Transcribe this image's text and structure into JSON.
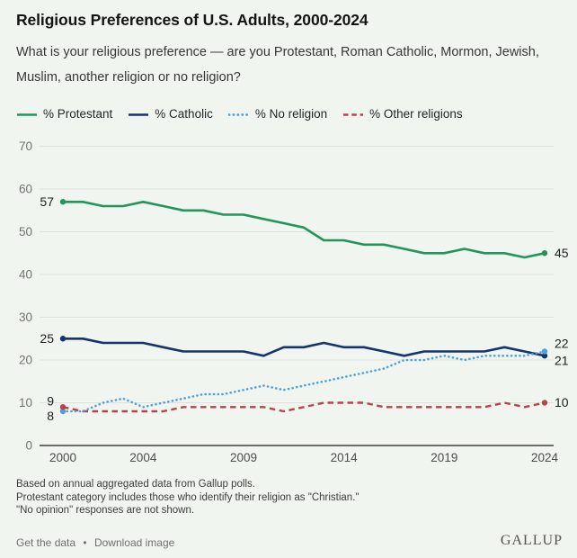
{
  "header": {
    "title": "Religious Preferences of U.S. Adults, 2000-2024",
    "subtitle": "What is your religious preference — are you Protestant, Roman Catholic, Mormon, Jewish, Muslim, another religion or no religion?"
  },
  "chart_data": {
    "type": "line",
    "x": [
      2000,
      2001,
      2002,
      2003,
      2004,
      2005,
      2006,
      2007,
      2008,
      2009,
      2010,
      2011,
      2012,
      2013,
      2014,
      2015,
      2016,
      2017,
      2018,
      2019,
      2020,
      2021,
      2022,
      2023,
      2024
    ],
    "x_tick_labels": [
      "2000",
      "2004",
      "2009",
      "2014",
      "2019",
      "2024"
    ],
    "y_ticks": [
      0,
      10,
      20,
      30,
      40,
      50,
      60,
      70
    ],
    "ylim": [
      0,
      70
    ],
    "grid": true,
    "legend_position": "top",
    "axis_color": "#3f3f3f",
    "grid_color": "#dde3dc",
    "tick_label_color": "#737373",
    "year_label_color": "#4c4c4c",
    "point_label_color": "#1f1f1f",
    "series": [
      {
        "name": "% Protestant",
        "color": "#23955a",
        "style": "solid",
        "values": [
          57,
          57,
          56,
          56,
          57,
          56,
          55,
          55,
          54,
          54,
          53,
          52,
          51,
          48,
          48,
          47,
          47,
          46,
          45,
          45,
          46,
          45,
          45,
          44,
          45
        ],
        "start_label": "57",
        "end_label": "45"
      },
      {
        "name": "% Catholic",
        "color": "#15336e",
        "style": "solid",
        "values": [
          25,
          25,
          24,
          24,
          24,
          23,
          22,
          22,
          22,
          22,
          21,
          23,
          23,
          24,
          23,
          23,
          22,
          21,
          22,
          22,
          22,
          22,
          23,
          22,
          21
        ],
        "start_label": "25",
        "end_label": "21"
      },
      {
        "name": "% No religion",
        "color": "#4f9fd9",
        "style": "dotted",
        "values": [
          8,
          8,
          10,
          11,
          9,
          10,
          11,
          12,
          12,
          13,
          14,
          13,
          14,
          15,
          16,
          17,
          18,
          20,
          20,
          21,
          20,
          21,
          21,
          21,
          22
        ],
        "start_label": "8",
        "end_label": "22"
      },
      {
        "name": "% Other religions",
        "color": "#b8434a",
        "style": "dashed",
        "values": [
          9,
          8,
          8,
          8,
          8,
          8,
          9,
          9,
          9,
          9,
          9,
          8,
          9,
          10,
          10,
          10,
          9,
          9,
          9,
          9,
          9,
          9,
          10,
          9,
          10
        ],
        "start_label": "9",
        "end_label": "10"
      }
    ]
  },
  "footnotes": [
    "Based on annual aggregated data from Gallup polls.",
    "Protestant category includes those who identify their religion as \"Christian.\"",
    "\"No opinion\" responses are not shown."
  ],
  "footer": {
    "get_data_label": "Get the data",
    "download_label": "Download image",
    "separator": "•",
    "brand": "GALLUP"
  }
}
